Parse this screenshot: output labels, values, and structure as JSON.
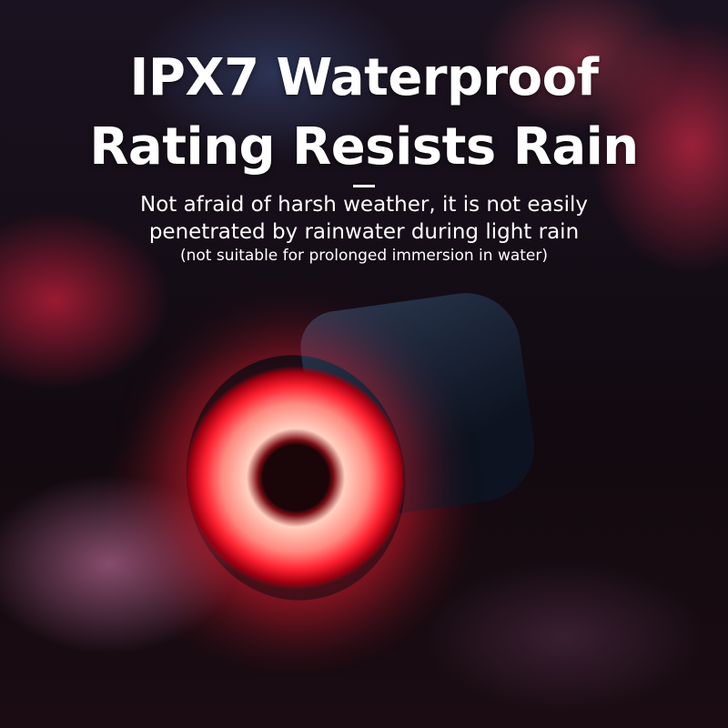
{
  "headline": {
    "line1": "IPX7 Waterproof",
    "line2": "Rating Resists Rain"
  },
  "subtitle": {
    "line1": "Not afraid of harsh weather, it is not easily",
    "line2": "penetrated by rainwater during light rain"
  },
  "note": "(not suitable for prolonged immersion in water)",
  "colors": {
    "light_red": "#ff2030",
    "text": "#ffffff"
  }
}
